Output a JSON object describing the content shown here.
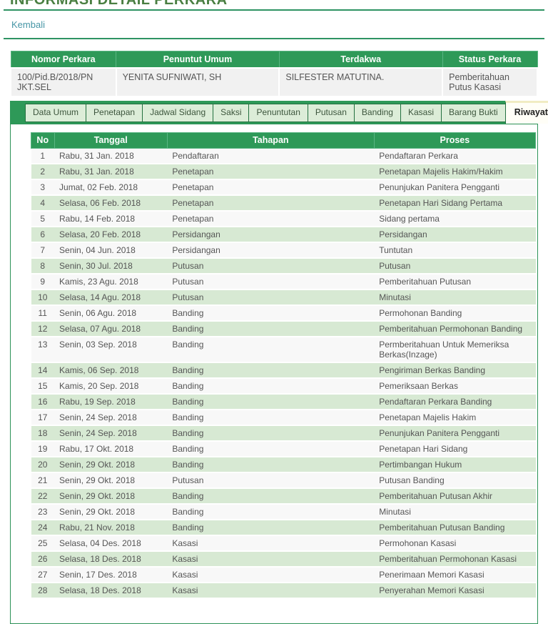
{
  "page": {
    "title": "INFORMASI DETAIL PERKARA",
    "back_link": "Kembali"
  },
  "colors": {
    "accent_green": "#2e9958",
    "tab_inactive_bg": "#dcedd8",
    "tab_active_bg": "#fffef7",
    "row_even_bg": "#d7e9d3",
    "row_odd_bg": "#f8f8f8",
    "link_teal": "#4796a6",
    "title_green": "#4a7f42"
  },
  "case_table": {
    "headers": [
      "Nomor Perkara",
      "Penuntut Umum",
      "Terdakwa",
      "Status Perkara"
    ],
    "row": {
      "nomor_perkara": "100/Pid.B/2018/PN JKT.SEL",
      "penuntut_umum": "YENITA SUFNIWATI, SH",
      "terdakwa": "SILFESTER MATUTINA.",
      "status_perkara": "Pemberitahuan Putus Kasasi"
    }
  },
  "tabs": {
    "active": "Riwayat Perkara",
    "items": [
      "Data Umum",
      "Penetapan",
      "Jadwal Sidang",
      "Saksi",
      "Penuntutan",
      "Putusan",
      "Banding",
      "Kasasi",
      "Barang Bukti",
      "Riwayat Perkara"
    ]
  },
  "history_table": {
    "headers": [
      "No",
      "Tanggal",
      "Tahapan",
      "Proses"
    ],
    "rows": [
      [
        "1",
        "Rabu, 31 Jan. 2018",
        "Pendaftaran",
        "Pendaftaran Perkara"
      ],
      [
        "2",
        "Rabu, 31 Jan. 2018",
        "Penetapan",
        "Penetapan Majelis Hakim/Hakim"
      ],
      [
        "3",
        "Jumat, 02 Feb. 2018",
        "Penetapan",
        "Penunjukan Panitera Pengganti"
      ],
      [
        "4",
        "Selasa, 06 Feb. 2018",
        "Penetapan",
        "Penetapan Hari Sidang Pertama"
      ],
      [
        "5",
        "Rabu, 14 Feb. 2018",
        "Penetapan",
        "Sidang pertama"
      ],
      [
        "6",
        "Selasa, 20 Feb. 2018",
        "Persidangan",
        "Persidangan"
      ],
      [
        "7",
        "Senin, 04 Jun. 2018",
        "Persidangan",
        "Tuntutan"
      ],
      [
        "8",
        "Senin, 30 Jul. 2018",
        "Putusan",
        "Putusan"
      ],
      [
        "9",
        "Kamis, 23 Agu. 2018",
        "Putusan",
        "Pemberitahuan Putusan"
      ],
      [
        "10",
        "Selasa, 14 Agu. 2018",
        "Putusan",
        "Minutasi"
      ],
      [
        "11",
        "Senin, 06 Agu. 2018",
        "Banding",
        "Permohonan Banding"
      ],
      [
        "12",
        "Selasa, 07 Agu. 2018",
        "Banding",
        "Pemberitahuan Permohonan Banding"
      ],
      [
        "13",
        "Senin, 03 Sep. 2018",
        "Banding",
        "Permberitahuan Untuk Memeriksa Berkas(Inzage)"
      ],
      [
        "14",
        "Kamis, 06 Sep. 2018",
        "Banding",
        "Pengiriman Berkas Banding"
      ],
      [
        "15",
        "Kamis, 20 Sep. 2018",
        "Banding",
        "Pemeriksaan Berkas"
      ],
      [
        "16",
        "Rabu, 19 Sep. 2018",
        "Banding",
        "Pendaftaran Perkara Banding"
      ],
      [
        "17",
        "Senin, 24 Sep. 2018",
        "Banding",
        "Penetapan Majelis Hakim"
      ],
      [
        "18",
        "Senin, 24 Sep. 2018",
        "Banding",
        "Penunjukan Panitera Pengganti"
      ],
      [
        "19",
        "Rabu, 17 Okt. 2018",
        "Banding",
        "Penetapan Hari Sidang"
      ],
      [
        "20",
        "Senin, 29 Okt. 2018",
        "Banding",
        "Pertimbangan Hukum"
      ],
      [
        "21",
        "Senin, 29 Okt. 2018",
        "Putusan",
        "Putusan Banding"
      ],
      [
        "22",
        "Senin, 29 Okt. 2018",
        "Banding",
        "Pemberitahuan Putusan Akhir"
      ],
      [
        "23",
        "Senin, 29 Okt. 2018",
        "Banding",
        "Minutasi"
      ],
      [
        "24",
        "Rabu, 21 Nov. 2018",
        "Banding",
        "Pemberitahuan Putusan Banding"
      ],
      [
        "25",
        "Selasa, 04 Des. 2018",
        "Kasasi",
        "Permohonan Kasasi"
      ],
      [
        "26",
        "Selasa, 18 Des. 2018",
        "Kasasi",
        "Pemberitahuan Permohonan Kasasi"
      ],
      [
        "27",
        "Senin, 17 Des. 2018",
        "Kasasi",
        "Penerimaan Memori Kasasi"
      ],
      [
        "28",
        "Selasa, 18 Des. 2018",
        "Kasasi",
        "Penyerahan Memori Kasasi"
      ]
    ]
  }
}
